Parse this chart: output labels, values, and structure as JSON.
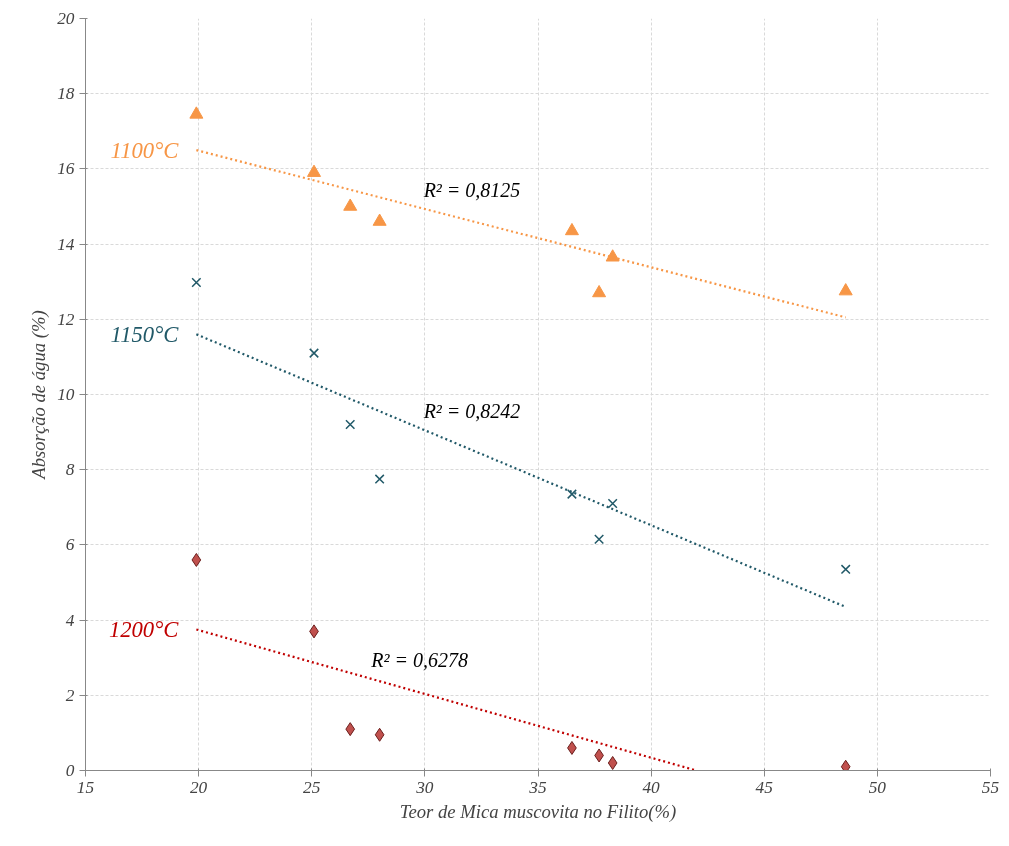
{
  "chart_data": {
    "type": "scatter",
    "xlabel": "Teor de Mica muscovita no Filito(%)",
    "ylabel": "Absorção de água (%)",
    "xlim": [
      15,
      55
    ],
    "xticks": [
      15,
      20,
      25,
      30,
      35,
      40,
      45,
      50,
      55
    ],
    "ylim": [
      0,
      20
    ],
    "yticks": [
      0,
      2,
      4,
      6,
      8,
      10,
      12,
      14,
      16,
      18,
      20
    ],
    "grid": true,
    "x": [
      19.9,
      25.1,
      26.7,
      28.0,
      36.5,
      37.7,
      38.3,
      48.6
    ],
    "series": [
      {
        "marker": "triangle",
        "color": "#f79646",
        "values": [
          17.45,
          15.9,
          15.0,
          14.6,
          14.35,
          12.7,
          13.65,
          12.75
        ]
      },
      {
        "marker": "cross",
        "color": "#215968",
        "values": [
          12.98,
          11.1,
          9.2,
          7.75,
          7.35,
          6.15,
          7.1,
          5.35
        ]
      },
      {
        "marker": "diamond",
        "color": "#c0504d",
        "values": [
          5.6,
          3.7,
          1.1,
          0.95,
          0.6,
          0.4,
          0.2,
          0.1
        ]
      },
      {
        "type": "line",
        "name": "1100°C",
        "line_style": "dotted",
        "color": "#f79646",
        "x": [
          19.9,
          48.6
        ],
        "values": [
          16.5,
          12.05
        ]
      },
      {
        "type": "line",
        "name": "1150°C",
        "line_style": "dotted",
        "color": "#215968",
        "x": [
          19.9,
          48.6
        ],
        "values": [
          11.6,
          4.35
        ]
      },
      {
        "type": "line",
        "name": "1200°C",
        "line_style": "dotted",
        "color": "#c00000",
        "x": [
          19.9,
          42.0
        ],
        "values": [
          3.75,
          0
        ]
      }
    ],
    "annotations": [
      "R² = 0,8125",
      "R² = 0,8242",
      "R² = 0,6278"
    ]
  }
}
